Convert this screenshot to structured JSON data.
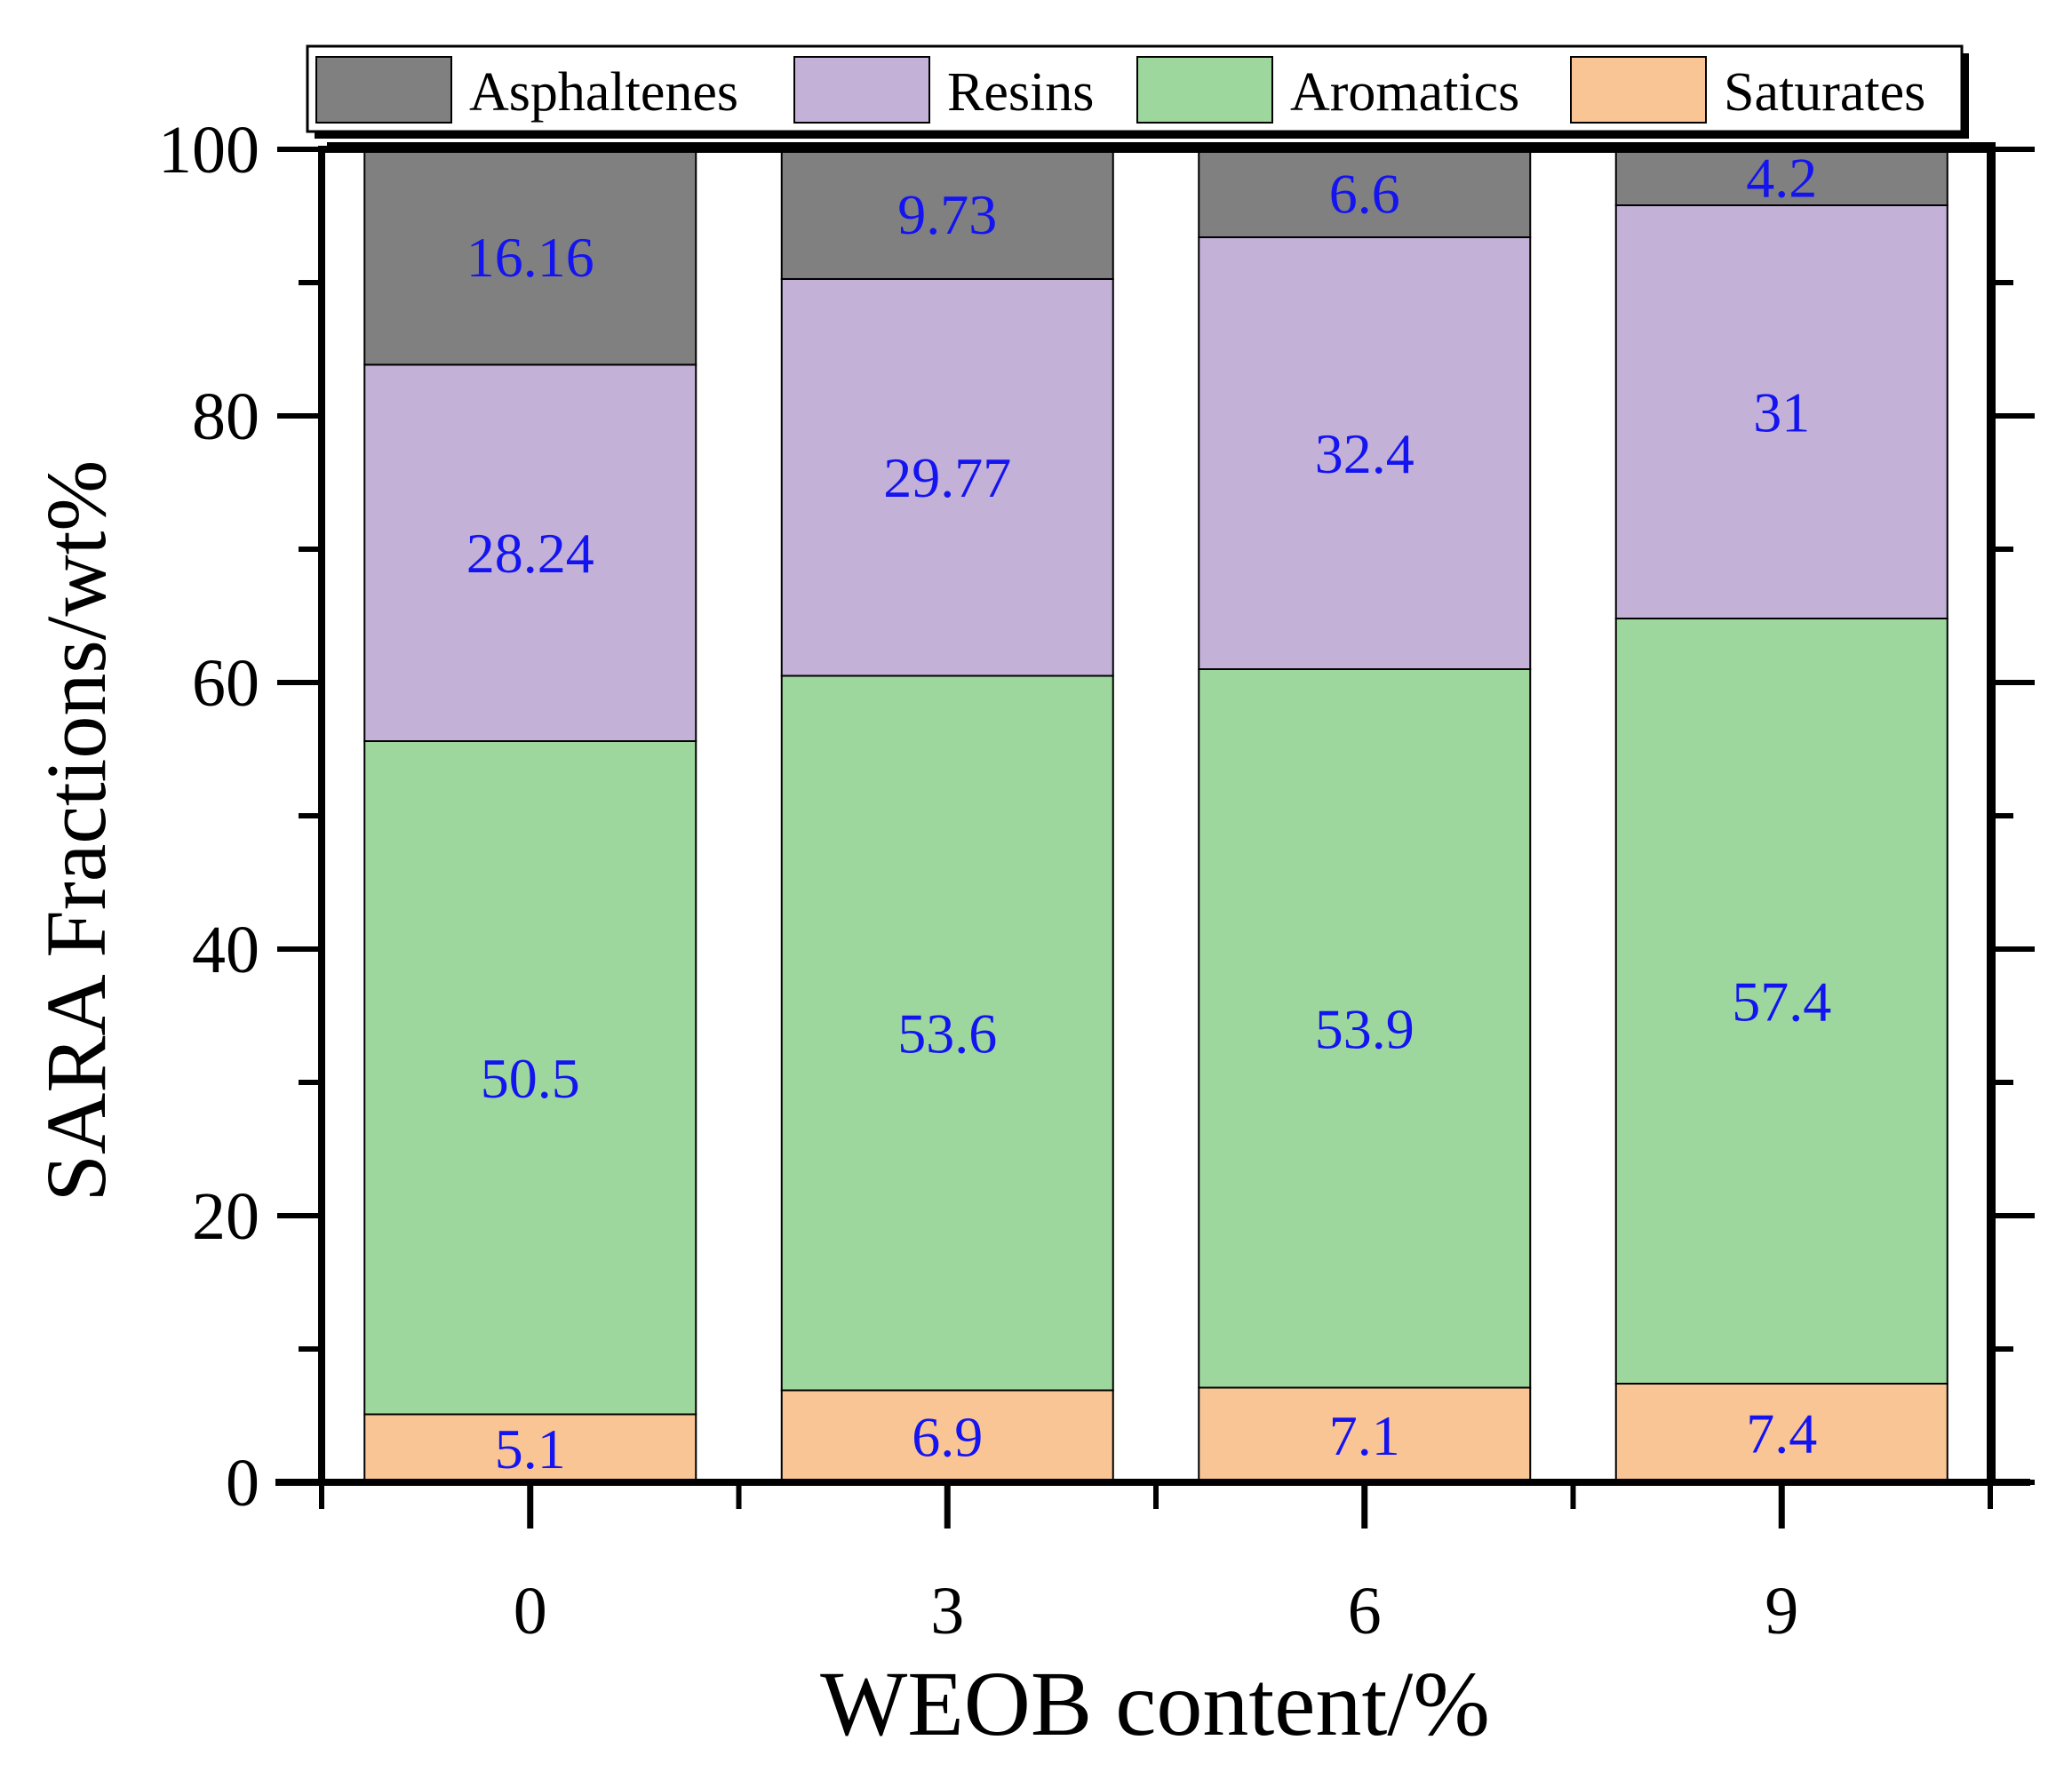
{
  "chart_data": {
    "type": "bar",
    "stacked": true,
    "title": "",
    "xlabel": "WEOB content/%",
    "ylabel": "SARA Fractions/wt%",
    "categories": [
      "0",
      "3",
      "6",
      "9"
    ],
    "ylim": [
      0,
      100
    ],
    "yticks": [
      "0",
      "20",
      "40",
      "60",
      "80",
      "100"
    ],
    "legend_position": "top",
    "series": [
      {
        "name": "Saturates",
        "color": "#F9C595",
        "values": [
          5.1,
          6.9,
          7.1,
          7.4
        ]
      },
      {
        "name": "Aromatics",
        "color": "#9ED79E",
        "values": [
          50.5,
          53.6,
          53.9,
          57.4
        ]
      },
      {
        "name": "Resins",
        "color": "#C3B1D7",
        "values": [
          28.24,
          29.77,
          32.4,
          31
        ]
      },
      {
        "name": "Asphaltenes",
        "color": "#808080",
        "values": [
          16.16,
          9.73,
          6.6,
          4.2
        ]
      }
    ],
    "data_labels": [
      [
        "5.1",
        "6.9",
        "7.1",
        "7.4"
      ],
      [
        "50.5",
        "53.6",
        "53.9",
        "57.4"
      ],
      [
        "28.24",
        "29.77",
        "32.4",
        "31"
      ],
      [
        "16.16",
        "9.73",
        "6.6",
        "4.2"
      ]
    ],
    "legend_order": [
      "Asphaltenes",
      "Resins",
      "Aromatics",
      "Saturates"
    ],
    "label_color": "#1414F0"
  }
}
